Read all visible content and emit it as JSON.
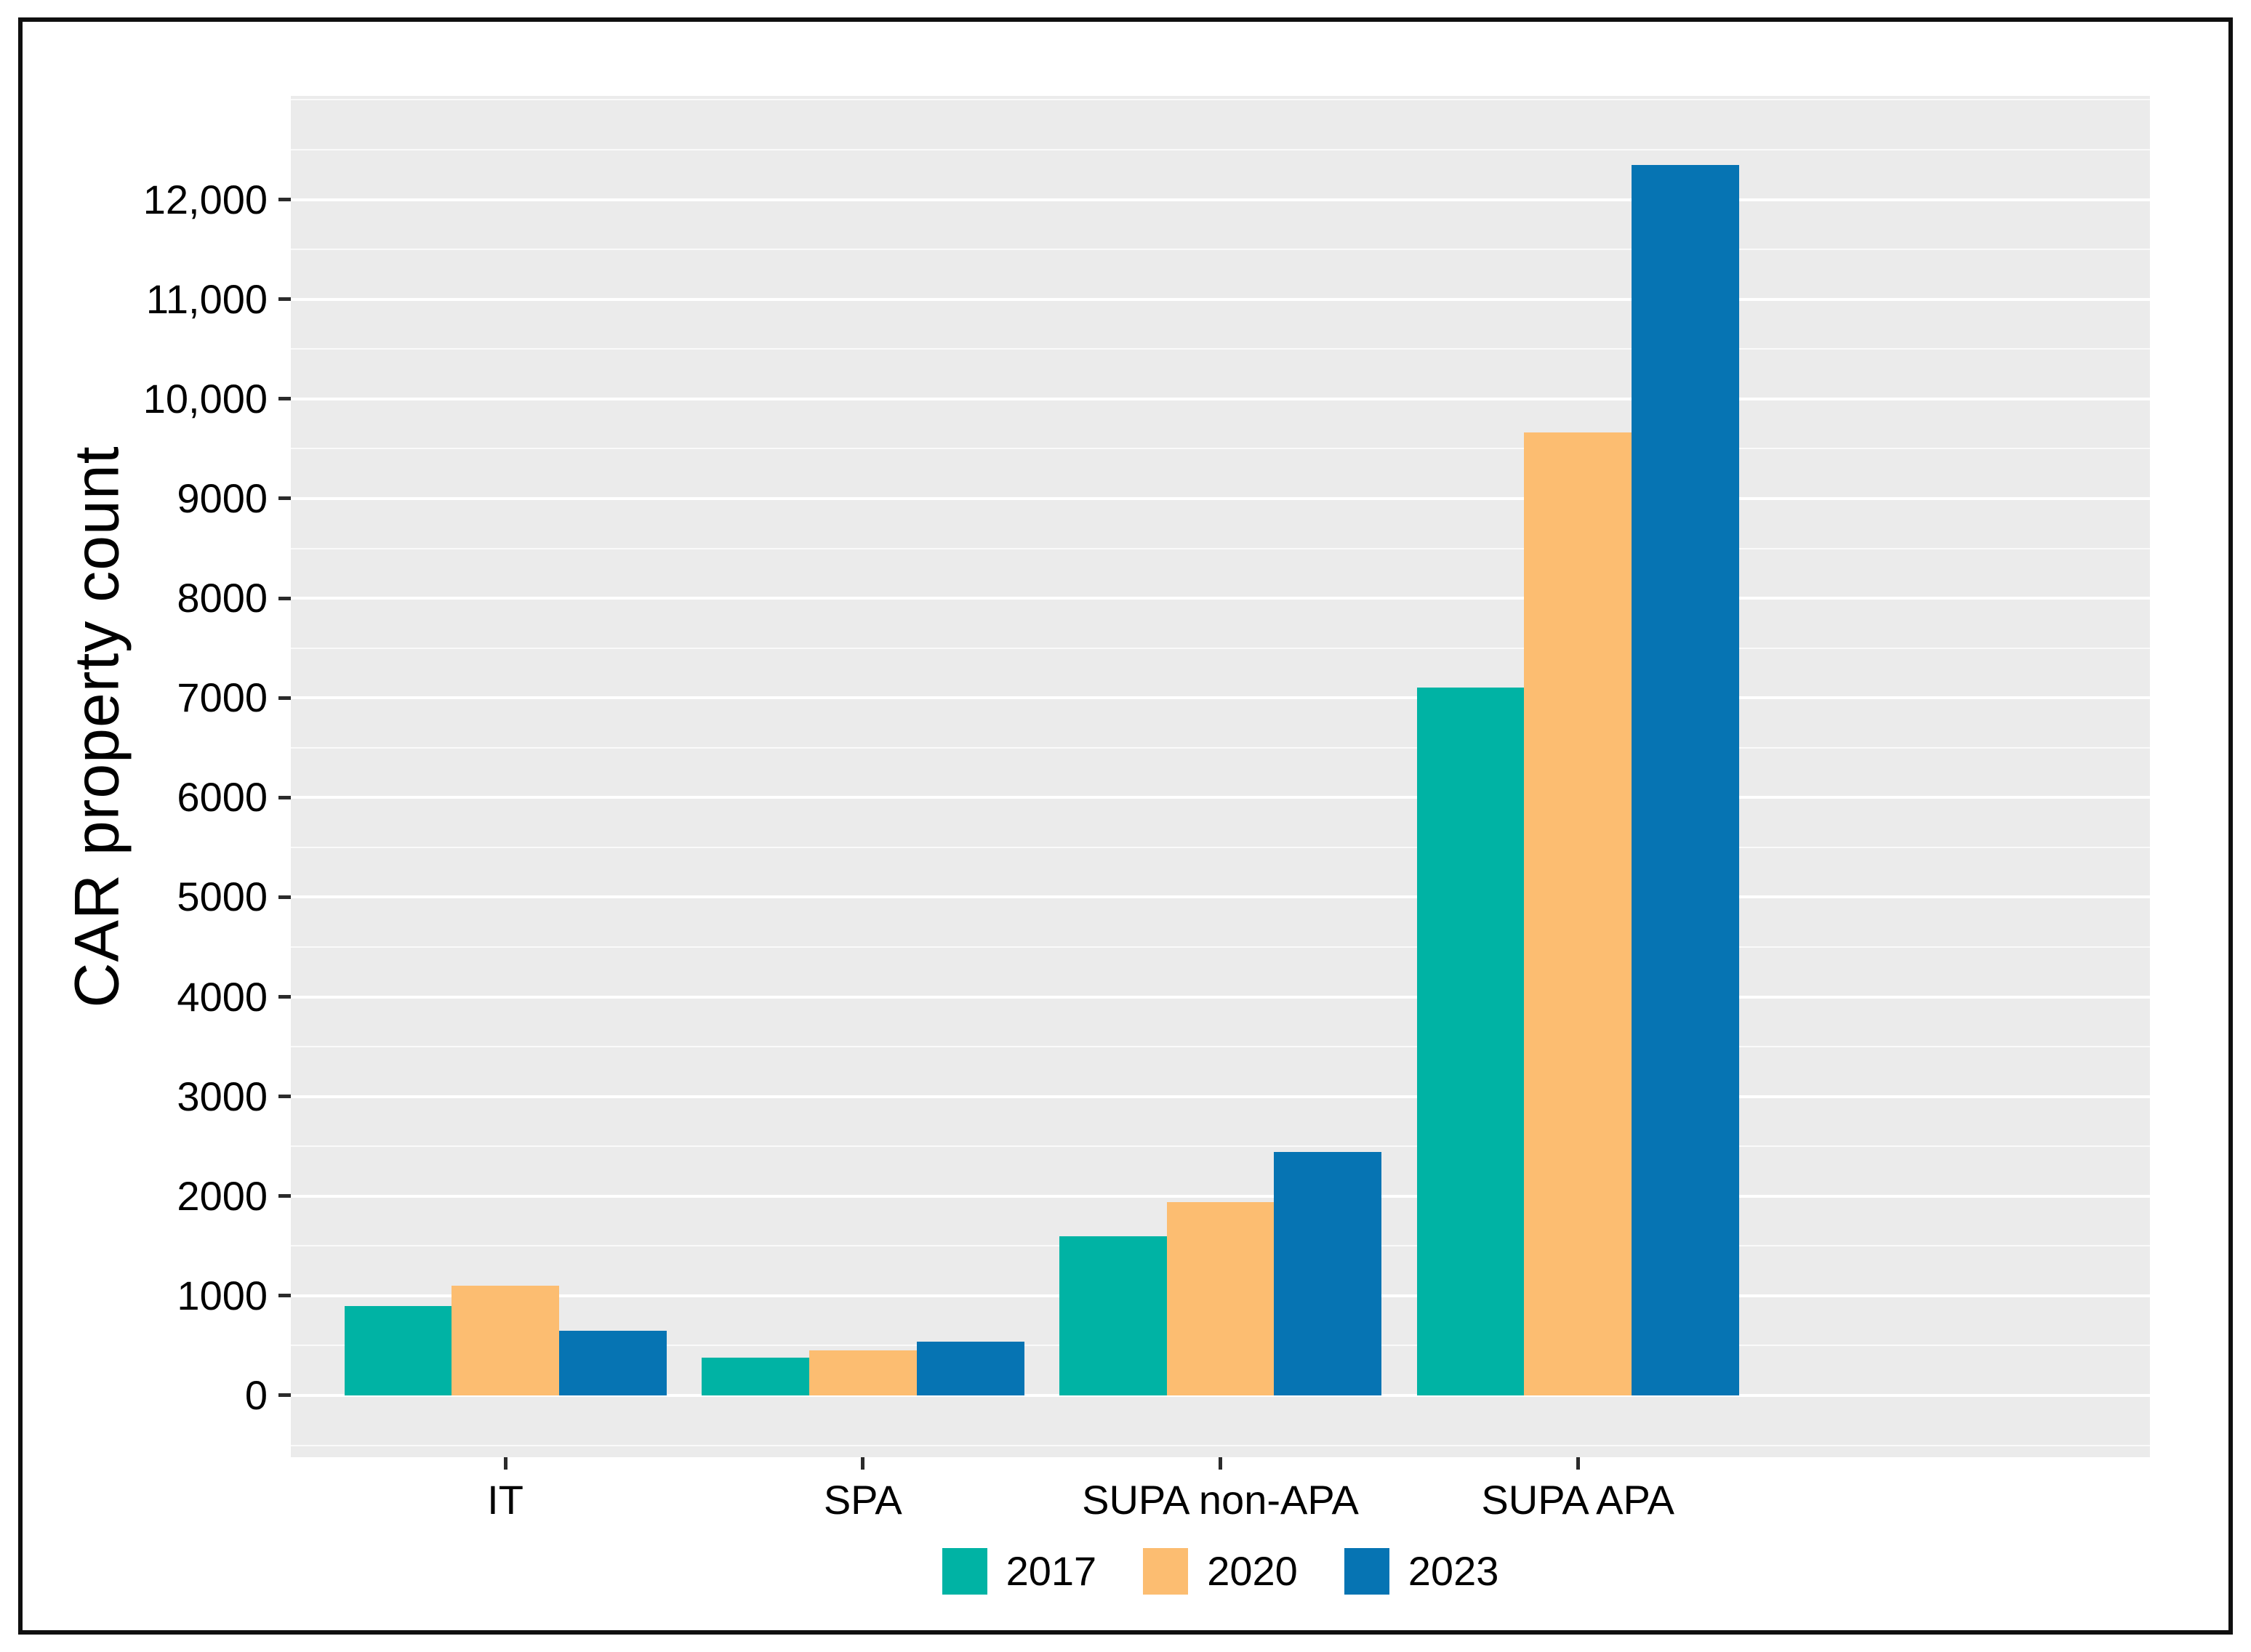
{
  "chart_data": {
    "type": "bar",
    "title": "",
    "ylabel": "CAR property count",
    "xlabel": "",
    "categories": [
      "IT",
      "SPA",
      "SUPA non-APA",
      "SUPA APA"
    ],
    "series": [
      {
        "name": "2017",
        "color": "#00b3a4",
        "values": [
          900,
          380,
          1600,
          7100
        ]
      },
      {
        "name": "2020",
        "color": "#fcbd71",
        "values": [
          1100,
          450,
          1940,
          9660
        ]
      },
      {
        "name": "2023",
        "color": "#0674b3",
        "values": [
          650,
          540,
          2440,
          12350
        ]
      }
    ],
    "ylim": [
      -620,
      13040
    ],
    "yticks": [
      {
        "value": 0,
        "label": "0"
      },
      {
        "value": 1000,
        "label": "1000"
      },
      {
        "value": 2000,
        "label": "2000"
      },
      {
        "value": 3000,
        "label": "3000"
      },
      {
        "value": 4000,
        "label": "4000"
      },
      {
        "value": 5000,
        "label": "5000"
      },
      {
        "value": 6000,
        "label": "6000"
      },
      {
        "value": 7000,
        "label": "7000"
      },
      {
        "value": 8000,
        "label": "8000"
      },
      {
        "value": 9000,
        "label": "9000"
      },
      {
        "value": 10000,
        "label": "10,000"
      },
      {
        "value": 11000,
        "label": "11,000"
      },
      {
        "value": 12000,
        "label": "12,000"
      }
    ],
    "minor_grid_step": 500,
    "grid": "major+minor horizontal, white on gray panel",
    "legend_position": "bottom-center",
    "bar_group_width_fraction": 0.9,
    "colors": {
      "panel_bg": "#ebebeb",
      "grid": "#ffffff",
      "tick": "#2b2b2b",
      "text": "#000000",
      "figure_border": "#0f0f0f",
      "figure_bg": "#ffffff"
    }
  }
}
